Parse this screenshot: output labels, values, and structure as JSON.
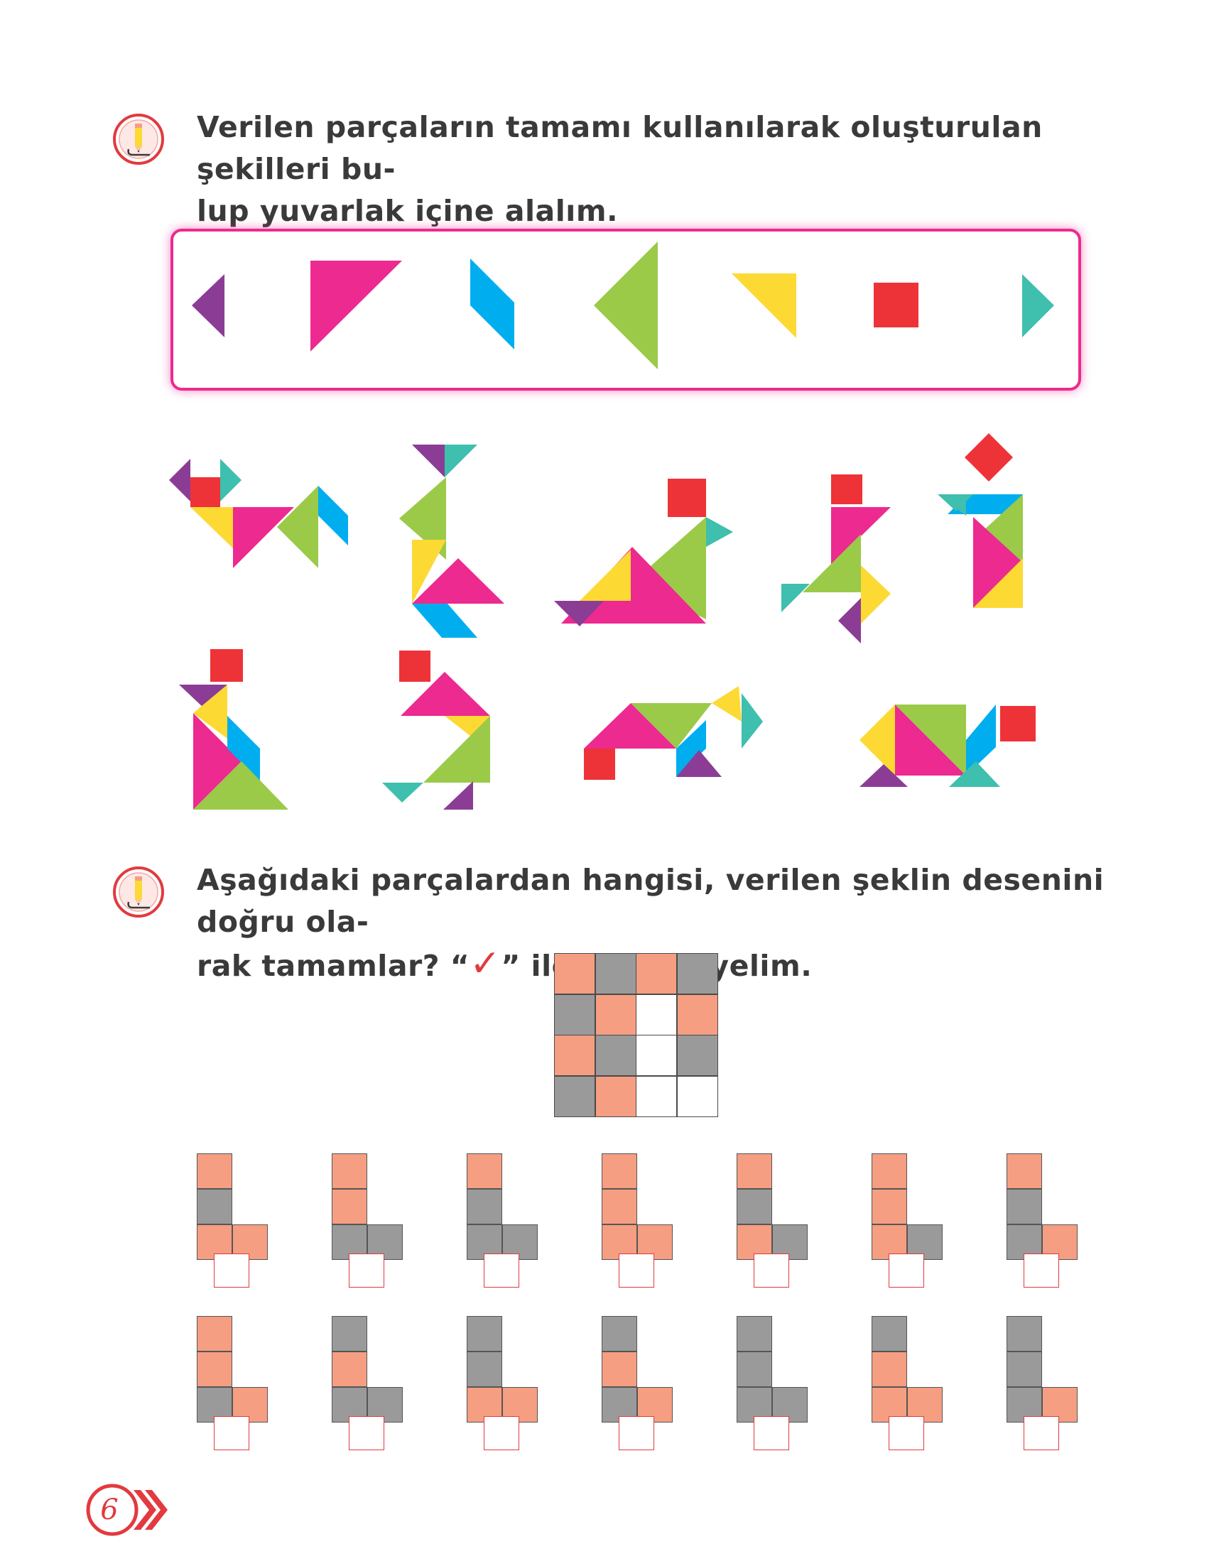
{
  "question1": {
    "line1": "Verilen parçaların tamamı kullanılarak oluşturulan şekilleri bu-",
    "line2": "lup yuvarlak içine alalım."
  },
  "question2": {
    "line1": "Aşağıdaki parçalardan hangisi, verilen şeklin desenini doğru ola-",
    "line2_before": "rak tamamlar? “",
    "check_symbol": "✓",
    "line2_after": "” ile işaretleyelim."
  },
  "colors": {
    "purple": "#8b3d96",
    "pink": "#ec2a8f",
    "blue": "#00aeef",
    "green": "#9bca49",
    "yellow": "#fdd934",
    "red": "#ee3338",
    "teal": "#3fbfad",
    "salmon": "#f59e82",
    "gray": "#9a9a9a",
    "accent_red": "#e23a3f"
  },
  "icons": [
    "pencil-question-icon",
    "double-chevron-icon"
  ],
  "pattern_grid": [
    [
      "salmon",
      "gray",
      "salmon",
      "gray"
    ],
    [
      "gray",
      "salmon",
      "white",
      "salmon"
    ],
    [
      "salmon",
      "gray",
      "white",
      "gray"
    ],
    [
      "gray",
      "salmon",
      "white",
      "white"
    ]
  ],
  "options": [
    [
      "salmon",
      "gray",
      "salmon",
      "salmon"
    ],
    [
      "salmon",
      "salmon",
      "gray",
      "gray"
    ],
    [
      "salmon",
      "gray",
      "gray",
      "gray"
    ],
    [
      "salmon",
      "salmon",
      "salmon",
      "salmon"
    ],
    [
      "salmon",
      "gray",
      "salmon",
      "gray"
    ],
    [
      "salmon",
      "salmon",
      "salmon",
      "gray"
    ],
    [
      "salmon",
      "gray",
      "gray",
      "salmon"
    ],
    [
      "salmon",
      "salmon",
      "gray",
      "salmon"
    ],
    [
      "gray",
      "salmon",
      "gray",
      "gray"
    ],
    [
      "gray",
      "gray",
      "salmon",
      "salmon"
    ],
    [
      "gray",
      "salmon",
      "gray",
      "salmon"
    ],
    [
      "gray",
      "gray",
      "gray",
      "gray"
    ],
    [
      "gray",
      "salmon",
      "salmon",
      "salmon"
    ],
    [
      "gray",
      "gray",
      "gray",
      "salmon"
    ]
  ],
  "page_number": "6"
}
